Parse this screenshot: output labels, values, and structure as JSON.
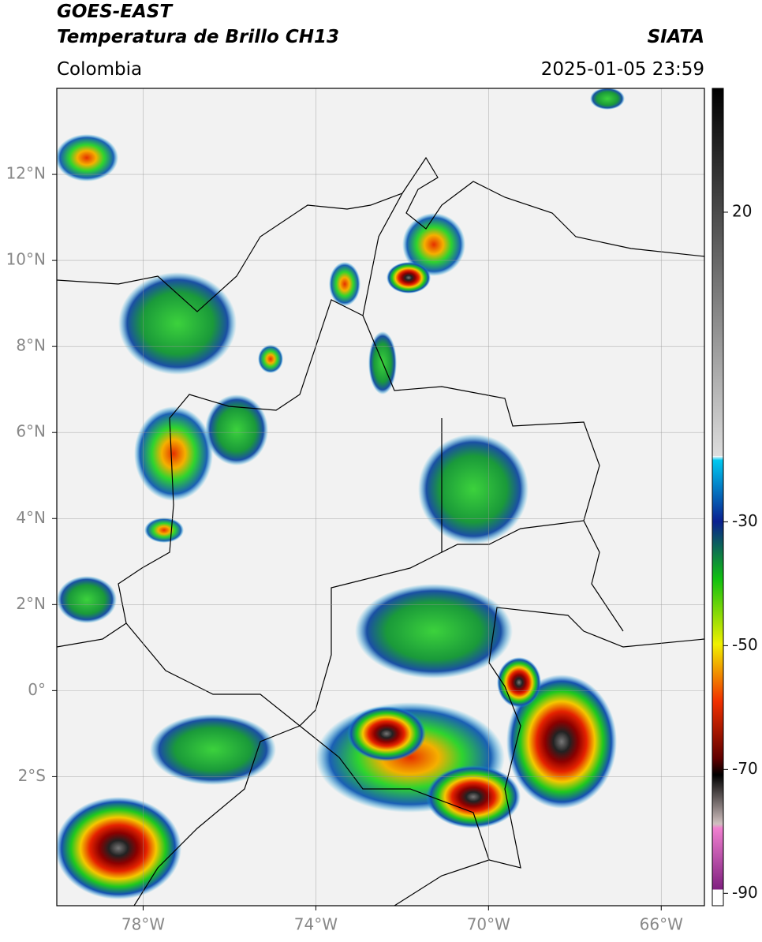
{
  "header": {
    "title": "GOES-EAST",
    "subtitle": "Temperatura de Brillo CH13",
    "region": "Colombia",
    "source": "SIATA",
    "datetime": "2025-01-05 23:59"
  },
  "map": {
    "xlim": [
      -80,
      -65
    ],
    "ylim": [
      -5,
      14
    ],
    "grid": true,
    "xticks": [
      {
        "value": -78,
        "label": "78°W"
      },
      {
        "value": -74,
        "label": "74°W"
      },
      {
        "value": -70,
        "label": "70°W"
      },
      {
        "value": -66,
        "label": "66°W"
      }
    ],
    "yticks": [
      {
        "value": 12,
        "label": "12°N"
      },
      {
        "value": 10,
        "label": "10°N"
      },
      {
        "value": 8,
        "label": "8°N"
      },
      {
        "value": 6,
        "label": "6°N"
      },
      {
        "value": 4,
        "label": "4°N"
      },
      {
        "value": 2,
        "label": "2°N"
      },
      {
        "value": 0,
        "label": "0°"
      },
      {
        "value": -2,
        "label": "2°S"
      }
    ]
  },
  "colorbar": {
    "lim": [
      -92,
      40
    ],
    "ticks": [
      20,
      -30,
      -50,
      -70,
      -90
    ]
  }
}
